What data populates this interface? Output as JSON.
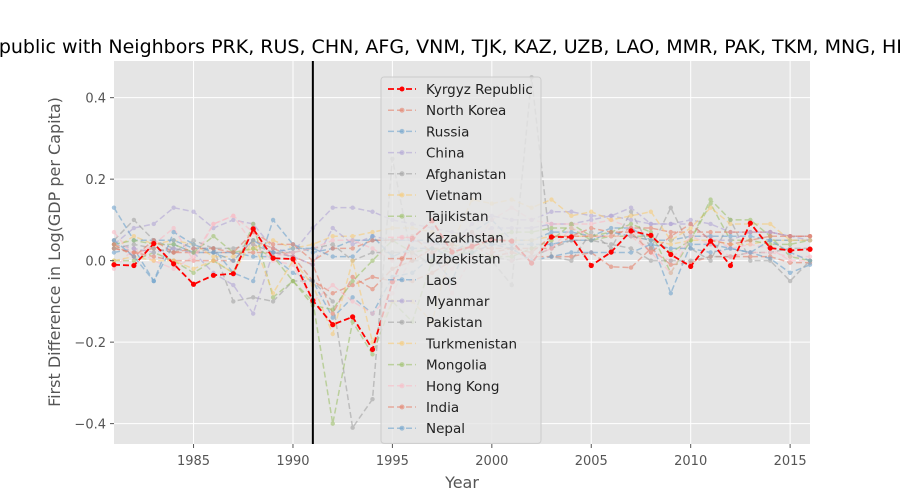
{
  "chart_data": {
    "type": "line",
    "title": "Kyrgyz Republic with Neighbors PRK, RUS, CHN, AFG, VNM, TJK, KAZ, UZB, LAO, MMR, PAK, TKM, MNG, HKG, IND, NPL",
    "xlabel": "Year",
    "ylabel": "First Difference in Log(GDP per Capita)",
    "xlim": [
      1981,
      2016
    ],
    "ylim": [
      -0.45,
      0.49
    ],
    "xticks": [
      1985,
      1990,
      1995,
      2000,
      2005,
      2010,
      2015
    ],
    "yticks": [
      -0.4,
      -0.2,
      0.0,
      0.2,
      0.4
    ],
    "ytick_labels": [
      "−0.4",
      "−0.2",
      "0.0",
      "0.2",
      "0.4"
    ],
    "vline_x": 1991,
    "grid": true,
    "legend_position": "upper-center",
    "x": [
      1981,
      1982,
      1983,
      1984,
      1985,
      1986,
      1987,
      1988,
      1989,
      1990,
      1991,
      1992,
      1993,
      1994,
      1995,
      1996,
      1997,
      1998,
      1999,
      2000,
      2001,
      2002,
      2003,
      2004,
      2005,
      2006,
      2007,
      2008,
      2009,
      2010,
      2011,
      2012,
      2013,
      2014,
      2015,
      2016
    ],
    "series": [
      {
        "name": "Kyrgyz Republic",
        "color": "#ff0000",
        "values": [
          -0.01,
          -0.012,
          0.042,
          -0.008,
          -0.058,
          -0.036,
          -0.032,
          0.078,
          0.006,
          0.004,
          -0.098,
          -0.157,
          -0.138,
          -0.218,
          -0.052,
          0.055,
          0.098,
          0.021,
          0.035,
          0.052,
          0.048,
          -0.006,
          0.058,
          0.058,
          -0.012,
          0.021,
          0.073,
          0.062,
          0.015,
          -0.014,
          0.048,
          -0.012,
          0.092,
          0.031,
          0.025,
          0.028
        ]
      },
      {
        "name": "North Korea",
        "color": "#e5826c",
        "values": [
          0.03,
          0.02,
          0.03,
          0.02,
          0.02,
          0.02,
          0.02,
          0.02,
          0.02,
          0.01,
          -0.05,
          -0.08,
          -0.06,
          -0.04,
          -0.05,
          -0.05,
          -0.03,
          0.0,
          0.04,
          0.01,
          0.02,
          0.01,
          0.01,
          0.01,
          0.02,
          -0.015,
          -0.017,
          0.03,
          -0.01,
          -0.005,
          0.01,
          0.01,
          0.01,
          0.01,
          -0.005,
          -0.005
        ]
      },
      {
        "name": "Russia",
        "color": "#6fa3cd",
        "values": [
          0.02,
          0.03,
          -0.05,
          0.04,
          0.02,
          0.02,
          0.02,
          0.01,
          0.01,
          -0.03,
          -0.05,
          -0.14,
          -0.09,
          -0.13,
          -0.04,
          -0.03,
          0.01,
          -0.05,
          0.07,
          0.1,
          0.05,
          0.05,
          0.07,
          0.07,
          0.06,
          0.08,
          0.08,
          0.05,
          -0.08,
          0.04,
          0.04,
          0.03,
          0.02,
          0.005,
          -0.03,
          -0.01
        ]
      },
      {
        "name": "China",
        "color": "#b3a6d6",
        "values": [
          0.04,
          0.08,
          0.09,
          0.13,
          0.12,
          0.08,
          0.1,
          0.09,
          0.03,
          0.02,
          0.08,
          0.13,
          0.13,
          0.12,
          0.1,
          0.09,
          0.08,
          0.07,
          0.06,
          0.08,
          0.08,
          0.08,
          0.09,
          0.09,
          0.1,
          0.11,
          0.13,
          0.09,
          0.09,
          0.1,
          0.09,
          0.07,
          0.07,
          0.07,
          0.06,
          0.06
        ]
      },
      {
        "name": "Afghanistan",
        "color": "#a3a3a3",
        "values": [
          0.05,
          0.1,
          0.05,
          0.03,
          0.02,
          0.03,
          -0.1,
          -0.09,
          -0.1,
          -0.05,
          -0.05,
          -0.1,
          -0.41,
          -0.34,
          0.25,
          0.0,
          0.0,
          0.0,
          0.0,
          0.0,
          -0.06,
          0.45,
          0.01,
          0.0,
          0.07,
          0.03,
          0.12,
          0.03,
          0.13,
          0.03,
          0.0,
          0.1,
          0.0,
          0.0,
          -0.05,
          0.0
        ]
      },
      {
        "name": "Vietnam",
        "color": "#f7cc79",
        "values": [
          0.03,
          0.06,
          0.04,
          0.05,
          0.04,
          0.01,
          0.01,
          0.03,
          0.05,
          0.03,
          0.04,
          0.06,
          0.06,
          0.07,
          0.08,
          0.08,
          0.07,
          0.04,
          0.03,
          0.05,
          0.05,
          0.05,
          0.06,
          0.06,
          0.06,
          0.06,
          0.06,
          0.05,
          0.04,
          0.05,
          0.05,
          0.04,
          0.04,
          0.05,
          0.05,
          0.05
        ]
      },
      {
        "name": "Tajikistan",
        "color": "#9fc16c",
        "values": [
          0.0,
          0.0,
          0.02,
          0.0,
          -0.03,
          0.0,
          -0.03,
          0.09,
          -0.09,
          -0.05,
          -0.1,
          -0.4,
          -0.15,
          -0.23,
          -0.1,
          -0.15,
          0.0,
          0.04,
          0.02,
          0.06,
          0.07,
          0.07,
          0.08,
          0.08,
          0.05,
          0.06,
          0.06,
          0.06,
          0.02,
          0.05,
          0.14,
          0.05,
          0.05,
          0.04,
          0.04,
          0.05
        ]
      },
      {
        "name": "Kazakhstan",
        "color": "#f9bcc6",
        "values": [
          -0.02,
          0.03,
          0.0,
          -0.02,
          0.01,
          0.09,
          0.11,
          0.04,
          0.0,
          -0.01,
          -0.1,
          -0.06,
          -0.1,
          -0.13,
          -0.08,
          0.01,
          0.02,
          -0.02,
          0.03,
          0.1,
          0.13,
          0.1,
          0.09,
          0.09,
          0.09,
          0.1,
          0.08,
          0.02,
          0.0,
          0.06,
          0.06,
          0.03,
          0.04,
          0.03,
          0.0,
          0.0
        ]
      },
      {
        "name": "Uzbekistan",
        "color": "#e5826c",
        "values": [
          0.03,
          0.02,
          0.01,
          0.0,
          0.0,
          0.0,
          0.0,
          0.05,
          0.03,
          0.01,
          -0.01,
          -0.13,
          -0.04,
          -0.07,
          -0.02,
          0.0,
          0.03,
          0.03,
          0.03,
          0.03,
          0.03,
          0.03,
          0.03,
          0.06,
          0.06,
          0.06,
          0.08,
          0.08,
          0.07,
          0.07,
          0.07,
          0.07,
          0.07,
          0.07,
          0.06,
          0.06
        ]
      },
      {
        "name": "Laos",
        "color": "#6fa3cd",
        "values": [
          0.13,
          0.05,
          0.05,
          0.05,
          0.03,
          0.03,
          -0.03,
          -0.05,
          0.1,
          0.04,
          0.02,
          0.03,
          0.05,
          0.05,
          0.05,
          0.05,
          0.05,
          0.02,
          0.05,
          0.04,
          0.04,
          0.04,
          0.04,
          0.05,
          0.05,
          0.07,
          0.06,
          0.05,
          0.05,
          0.06,
          0.06,
          0.06,
          0.06,
          0.05,
          0.05,
          0.05
        ]
      },
      {
        "name": "Myanmar",
        "color": "#b3a6d6",
        "values": [
          0.04,
          0.03,
          0.02,
          0.03,
          0.02,
          -0.03,
          -0.06,
          -0.13,
          0.02,
          0.01,
          -0.01,
          0.08,
          0.04,
          0.06,
          0.05,
          0.05,
          0.04,
          0.04,
          0.09,
          0.11,
          0.1,
          0.1,
          0.12,
          0.12,
          0.11,
          0.11,
          0.1,
          0.09,
          0.09,
          0.09,
          0.05,
          0.05,
          0.07,
          0.07,
          0.06,
          0.05
        ]
      },
      {
        "name": "Pakistan",
        "color": "#a3a3a3",
        "values": [
          0.03,
          0.04,
          0.03,
          0.02,
          0.05,
          0.03,
          0.03,
          0.04,
          0.02,
          0.02,
          0.03,
          0.04,
          0.0,
          0.02,
          0.02,
          0.02,
          -0.01,
          0.0,
          0.01,
          0.01,
          0.0,
          0.01,
          0.03,
          0.05,
          0.05,
          0.04,
          0.03,
          0.0,
          0.0,
          0.0,
          0.01,
          0.01,
          0.02,
          0.02,
          0.03,
          0.03
        ]
      },
      {
        "name": "Turkmenistan",
        "color": "#f7cc79",
        "values": [
          0.0,
          0.01,
          0.0,
          0.0,
          -0.02,
          0.0,
          -0.03,
          0.05,
          -0.08,
          0.0,
          -0.06,
          -0.18,
          0.0,
          -0.2,
          -0.1,
          -0.1,
          -0.15,
          0.04,
          0.15,
          0.14,
          0.15,
          0.13,
          0.15,
          0.11,
          0.12,
          0.1,
          0.11,
          0.12,
          0.05,
          0.08,
          0.13,
          0.09,
          0.09,
          0.09,
          0.05,
          0.05
        ]
      },
      {
        "name": "Mongolia",
        "color": "#9fc16c",
        "values": [
          0.04,
          0.05,
          0.04,
          0.04,
          0.02,
          0.06,
          0.02,
          0.03,
          0.01,
          -0.05,
          -0.11,
          -0.12,
          -0.05,
          0.0,
          0.05,
          0.02,
          0.03,
          0.02,
          0.02,
          0.01,
          0.01,
          0.03,
          0.05,
          0.09,
          0.06,
          0.07,
          0.09,
          0.07,
          -0.03,
          0.05,
          0.15,
          0.1,
          0.1,
          0.06,
          0.01,
          0.0
        ]
      },
      {
        "name": "Hong Kong",
        "color": "#f9bcc6",
        "values": [
          0.07,
          0.01,
          0.04,
          0.08,
          0.0,
          0.09,
          0.11,
          0.07,
          0.01,
          0.02,
          0.03,
          0.05,
          0.05,
          0.03,
          0.0,
          0.02,
          0.04,
          -0.08,
          0.01,
          0.07,
          0.0,
          0.01,
          0.03,
          0.08,
          0.06,
          0.06,
          0.06,
          0.02,
          -0.03,
          0.06,
          0.04,
          0.01,
          0.02,
          0.02,
          0.01,
          0.01
        ]
      },
      {
        "name": "India",
        "color": "#e5826c",
        "values": [
          0.04,
          0.01,
          0.05,
          0.02,
          0.03,
          0.03,
          0.02,
          0.07,
          0.04,
          0.04,
          0.0,
          0.03,
          0.03,
          0.05,
          0.05,
          0.06,
          0.02,
          0.04,
          0.07,
          0.02,
          0.03,
          0.02,
          0.06,
          0.06,
          0.08,
          0.07,
          0.07,
          0.02,
          0.06,
          0.09,
          0.05,
          0.04,
          0.05,
          0.06,
          0.06,
          0.06
        ]
      },
      {
        "name": "Nepal",
        "color": "#6fa3cd",
        "values": [
          0.05,
          0.01,
          -0.05,
          0.07,
          0.04,
          0.02,
          0.0,
          0.05,
          0.02,
          0.03,
          0.03,
          0.01,
          0.01,
          0.06,
          0.01,
          0.03,
          0.03,
          0.01,
          0.02,
          0.04,
          0.03,
          0.0,
          0.01,
          0.02,
          0.02,
          0.02,
          0.02,
          0.04,
          0.03,
          0.03,
          0.02,
          0.03,
          0.02,
          0.05,
          0.02,
          0.0
        ]
      }
    ]
  }
}
